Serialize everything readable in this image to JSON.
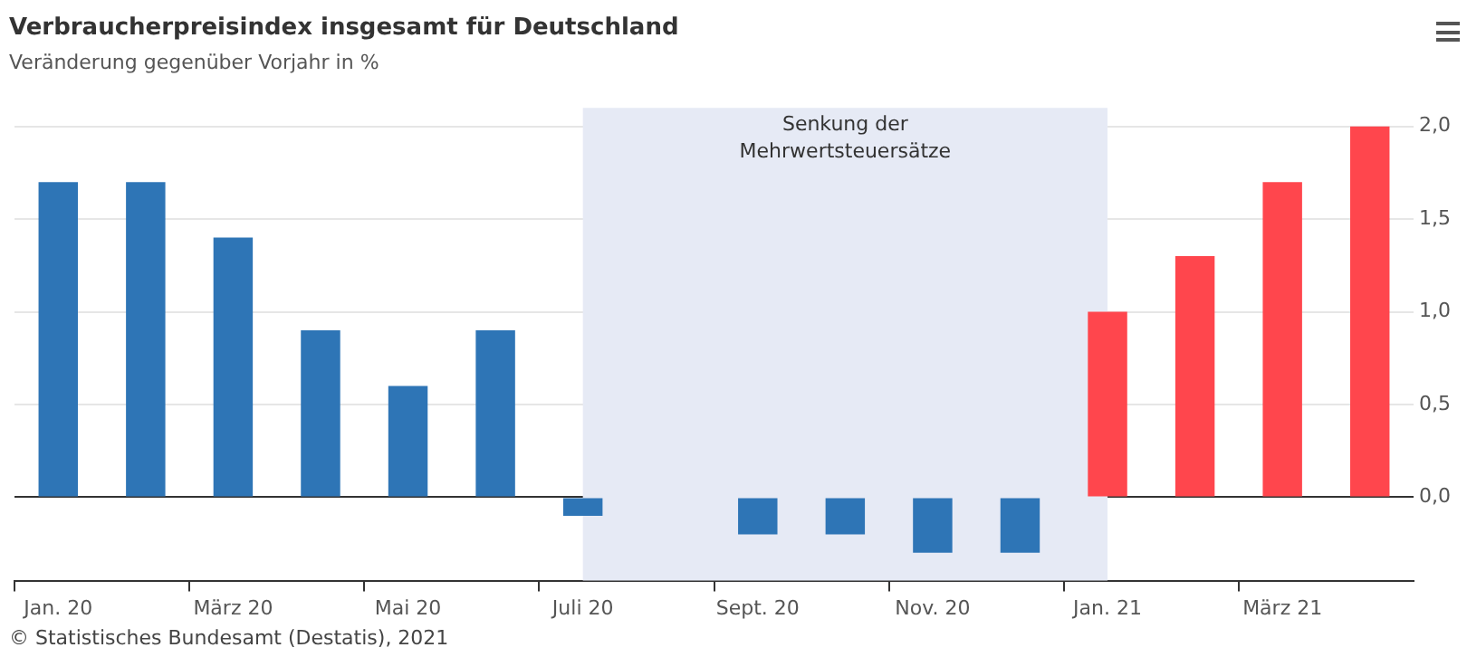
{
  "chart_data": {
    "type": "bar",
    "title": "Verbraucherpreisindex insgesamt für Deutschland",
    "subtitle": "Veränderung gegenüber Vorjahr in %",
    "categories": [
      "Jan. 20",
      null,
      "März 20",
      null,
      "Mai 20",
      null,
      "Juli 20",
      null,
      "Sept. 20",
      null,
      "Nov. 20",
      null,
      "Jan. 21",
      null,
      "März 21",
      null
    ],
    "values": [
      1.7,
      1.7,
      1.4,
      0.9,
      0.6,
      0.9,
      -0.1,
      0.0,
      -0.2,
      -0.2,
      -0.3,
      -0.3,
      1.0,
      1.3,
      1.7,
      2.0
    ],
    "colors": [
      "#2e75b6",
      "#2e75b6",
      "#2e75b6",
      "#2e75b6",
      "#2e75b6",
      "#2e75b6",
      "#2e75b6",
      "#2e75b6",
      "#2e75b6",
      "#2e75b6",
      "#2e75b6",
      "#2e75b6",
      "#ff464d",
      "#ff464d",
      "#ff464d",
      "#ff464d"
    ],
    "ylim": [
      -0.45,
      2.1
    ],
    "yticks": [
      {
        "value": 0,
        "label": "0,0"
      },
      {
        "value": 0.5,
        "label": "0,5"
      },
      {
        "value": 1,
        "label": "1,0"
      },
      {
        "value": 1.5,
        "label": "1,5"
      },
      {
        "value": 2,
        "label": "2,0"
      }
    ],
    "bands": [
      {
        "axis": "x",
        "from": "Juli 20",
        "to": "Jan. 21",
        "label": "Senkung der Mehrwertsteuersätze",
        "color": "#e6eaf5"
      }
    ],
    "grid": "y",
    "legend": false,
    "annotations": [
      "© Statistisches Bundesamt (Destatis), 2021"
    ]
  }
}
